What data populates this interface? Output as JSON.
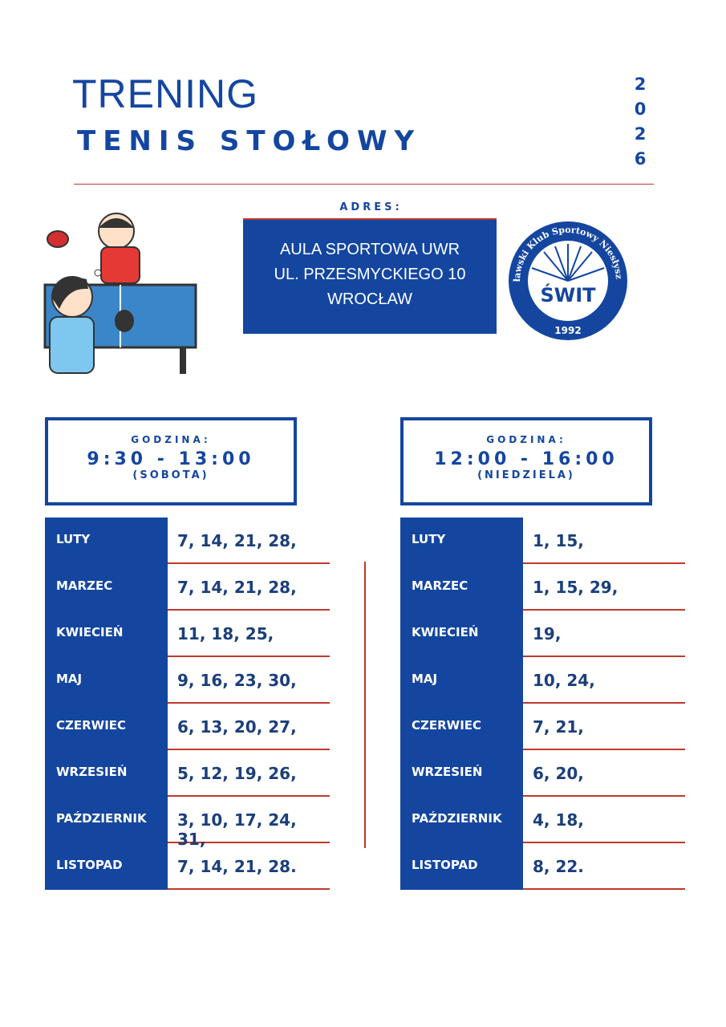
{
  "header": {
    "title": "TRENING",
    "subtitle": "TENIS STOŁOWY",
    "year": "2026"
  },
  "address": {
    "label": "ADRES:",
    "lines": [
      "AULA SPORTOWA UWR",
      "UL. PRZESMYCKIEGO 10",
      "WROCŁAW"
    ]
  },
  "logo": {
    "ring": "Wrocławski Klub Sportowy Niesłyszących",
    "name": "ŚWIT",
    "year": "1992"
  },
  "schedules": [
    {
      "heading": "GODZINA:",
      "time": "9:30 - 13:00",
      "day": "(SOBOTA)",
      "rows": [
        [
          "LUTY",
          "7, 14, 21, 28,"
        ],
        [
          "MARZEC",
          "7, 14, 21, 28,"
        ],
        [
          "KWIECIEŃ",
          "11, 18, 25,"
        ],
        [
          "MAJ",
          "9, 16, 23, 30,"
        ],
        [
          "CZERWIEC",
          "6, 13, 20, 27,"
        ],
        [
          "WRZESIEŃ",
          "5, 12, 19, 26,"
        ],
        [
          "PAŹDZIERNIK",
          "3, 10, 17, 24, 31,"
        ],
        [
          "LISTOPAD",
          "7, 14, 21, 28."
        ]
      ]
    },
    {
      "heading": "GODZINA:",
      "time": "12:00 - 16:00",
      "day": "(NIEDZIELA)",
      "rows": [
        [
          "LUTY",
          "1, 15,"
        ],
        [
          "MARZEC",
          "1, 15, 29,"
        ],
        [
          "KWIECIEŃ",
          "19,"
        ],
        [
          "MAJ",
          "10, 24,"
        ],
        [
          "CZERWIEC",
          "7, 21,"
        ],
        [
          "WRZESIEŃ",
          "6, 20,"
        ],
        [
          "PAŹDZIERNIK",
          "4, 18,"
        ],
        [
          "LISTOPAD",
          "8, 22."
        ]
      ]
    }
  ]
}
